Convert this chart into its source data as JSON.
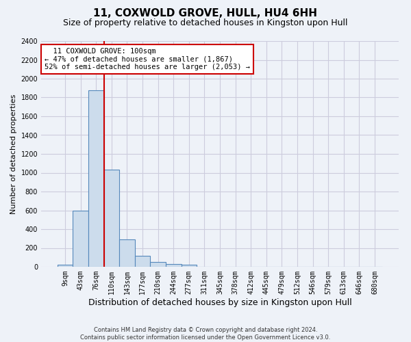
{
  "title": "11, COXWOLD GROVE, HULL, HU4 6HH",
  "subtitle": "Size of property relative to detached houses in Kingston upon Hull",
  "xlabel": "Distribution of detached houses by size in Kingston upon Hull",
  "ylabel": "Number of detached properties",
  "footnote": "Contains HM Land Registry data © Crown copyright and database right 2024.\nContains public sector information licensed under the Open Government Licence v3.0.",
  "bar_labels": [
    "9sqm",
    "43sqm",
    "76sqm",
    "110sqm",
    "143sqm",
    "177sqm",
    "210sqm",
    "244sqm",
    "277sqm",
    "311sqm",
    "345sqm",
    "378sqm",
    "412sqm",
    "445sqm",
    "479sqm",
    "512sqm",
    "546sqm",
    "579sqm",
    "613sqm",
    "646sqm",
    "680sqm"
  ],
  "bar_values": [
    20,
    600,
    1880,
    1030,
    290,
    115,
    50,
    30,
    20,
    0,
    0,
    0,
    0,
    0,
    0,
    0,
    0,
    0,
    0,
    0,
    0
  ],
  "bar_color": "#ccdcec",
  "bar_edge_color": "#5588bb",
  "ylim": [
    0,
    2400
  ],
  "yticks": [
    0,
    200,
    400,
    600,
    800,
    1000,
    1200,
    1400,
    1600,
    1800,
    2000,
    2200,
    2400
  ],
  "red_line_x": 2.5,
  "annotation_text": "  11 COXWOLD GROVE: 100sqm\n← 47% of detached houses are smaller (1,867)\n52% of semi-detached houses are larger (2,053) →",
  "annotation_box_color": "#ffffff",
  "annotation_box_edge": "#cc0000",
  "background_color": "#eef2f8",
  "grid_color": "#ccccdd",
  "title_fontsize": 11,
  "subtitle_fontsize": 9,
  "xlabel_fontsize": 9,
  "ylabel_fontsize": 8,
  "tick_fontsize": 7,
  "annot_fontsize": 7.5,
  "footnote_fontsize": 6
}
